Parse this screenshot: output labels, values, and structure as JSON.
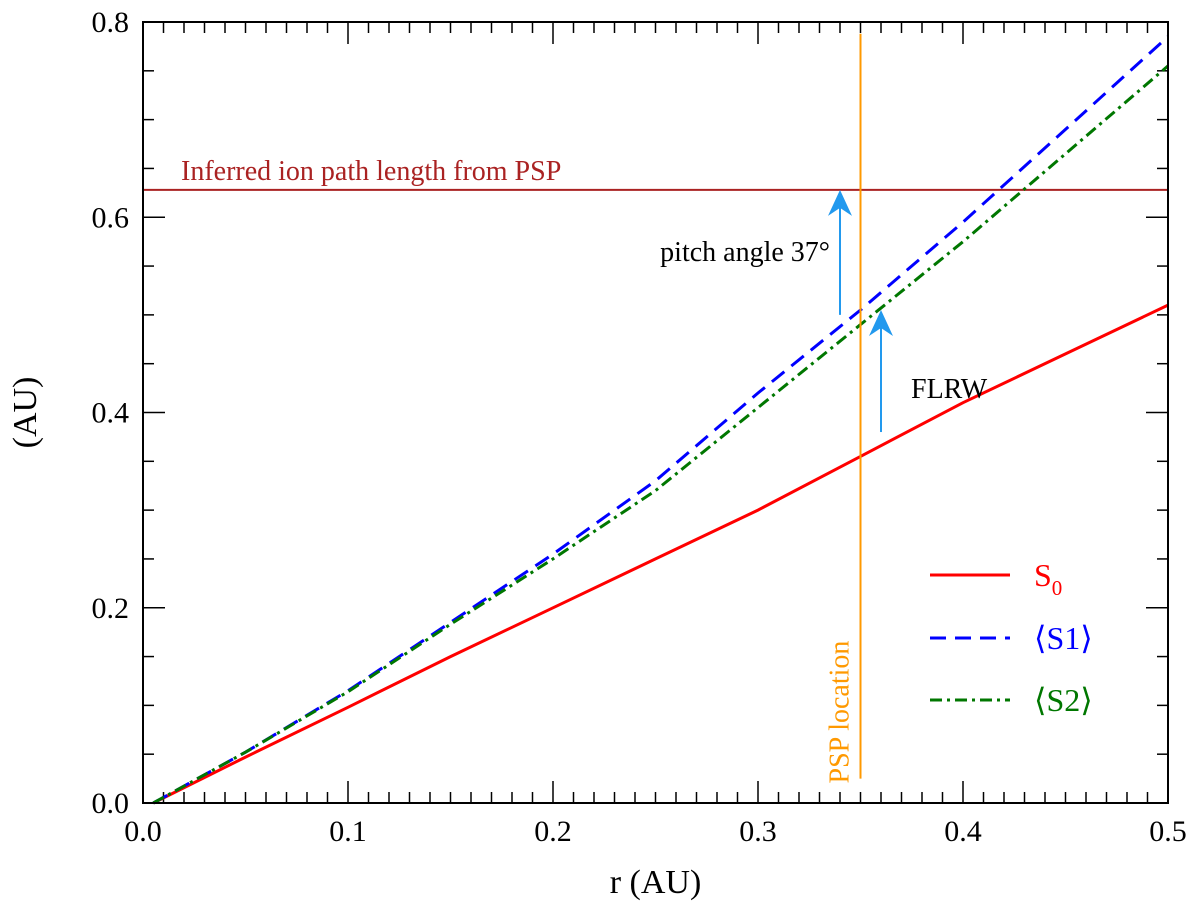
{
  "chart_data": {
    "type": "line",
    "xlabel": "r (AU)",
    "ylabel": "(AU)",
    "xlim": [
      0.0,
      0.5
    ],
    "ylim": [
      0.0,
      0.8
    ],
    "x_ticks": [
      "0.0",
      "0.1",
      "0.2",
      "0.3",
      "0.4",
      "0.5"
    ],
    "y_ticks": [
      "0.0",
      "0.2",
      "0.4",
      "0.6",
      "0.8"
    ],
    "grid": false,
    "legend_position": "lower-right",
    "series": [
      {
        "name": "S0",
        "label_main": "S",
        "label_sub": "0",
        "color": "#ff0000",
        "style": "solid",
        "x": [
          0.005,
          0.05,
          0.1,
          0.15,
          0.2,
          0.25,
          0.3,
          0.35,
          0.4,
          0.45,
          0.5
        ],
        "y": [
          0.0,
          0.047,
          0.098,
          0.15,
          0.2,
          0.25,
          0.3,
          0.355,
          0.41,
          0.46,
          0.51
        ]
      },
      {
        "name": "⟨S1⟩",
        "label_main": "⟨S1⟩",
        "label_sub": "",
        "color": "#0000ff",
        "style": "dashed",
        "x": [
          0.005,
          0.05,
          0.1,
          0.15,
          0.2,
          0.25,
          0.3,
          0.35,
          0.4,
          0.45,
          0.5
        ],
        "y": [
          0.0,
          0.052,
          0.115,
          0.185,
          0.255,
          0.33,
          0.42,
          0.505,
          0.595,
          0.69,
          0.785
        ]
      },
      {
        "name": "⟨S2⟩",
        "label_main": "⟨S2⟩",
        "label_sub": "",
        "color": "#007700",
        "style": "dashdot",
        "x": [
          0.005,
          0.05,
          0.1,
          0.15,
          0.2,
          0.25,
          0.3,
          0.35,
          0.4,
          0.45,
          0.5
        ],
        "y": [
          0.0,
          0.052,
          0.114,
          0.183,
          0.25,
          0.32,
          0.405,
          0.49,
          0.575,
          0.665,
          0.755
        ]
      }
    ],
    "horizontal_line": {
      "y": 0.628,
      "color": "#aa2222",
      "label": "Inferred ion path length from PSP"
    },
    "vertical_line": {
      "x": 0.35,
      "color": "#ff9900",
      "label": "PSP location"
    },
    "annotations": [
      {
        "text": "pitch angle 37°",
        "color": "#000000",
        "arrow_x": 0.34,
        "arrow_from": 0.5,
        "arrow_to": 0.628,
        "arrow_color": "#2299ee"
      },
      {
        "text": "FLRW",
        "color": "#000000",
        "arrow_x": 0.36,
        "arrow_from": 0.38,
        "arrow_to": 0.505,
        "arrow_color": "#2299ee"
      }
    ]
  }
}
